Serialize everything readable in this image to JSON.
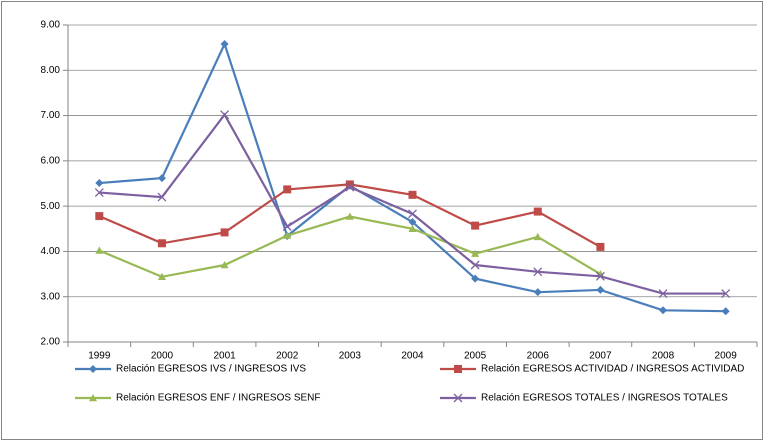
{
  "chart_data": {
    "type": "line",
    "categories": [
      "1999",
      "2000",
      "2001",
      "2002",
      "2003",
      "2004",
      "2005",
      "2006",
      "2007",
      "2008",
      "2009"
    ],
    "series": [
      {
        "name": "Relación EGRESOS IVS / INGRESOS IVS",
        "color": "#4a7ebb",
        "marker": "diamond",
        "values": [
          5.51,
          5.62,
          8.58,
          4.34,
          5.45,
          4.65,
          3.4,
          3.1,
          3.15,
          2.7,
          2.68
        ]
      },
      {
        "name": "Relación EGRESOS  ACTIVIDAD / INGRESOS ACTIVIDAD",
        "color": "#be4b48",
        "marker": "square",
        "values": [
          4.78,
          4.18,
          4.42,
          5.37,
          5.48,
          5.25,
          4.57,
          4.88,
          4.1,
          null,
          null
        ]
      },
      {
        "name": "Relación EGRESOS  ENF / INGRESOS  SENF",
        "color": "#98b954",
        "marker": "triangle",
        "values": [
          4.02,
          3.44,
          3.7,
          4.35,
          4.77,
          4.5,
          3.95,
          4.32,
          3.5,
          null,
          null
        ]
      },
      {
        "name": "Relación EGRESOS  TOTALES / INGRESOS TOTALES",
        "color": "#7d60a0",
        "marker": "x",
        "values": [
          5.3,
          5.2,
          7.02,
          4.55,
          5.42,
          4.83,
          3.7,
          3.55,
          3.45,
          3.07,
          3.07
        ]
      }
    ],
    "ylim": [
      2,
      9
    ],
    "yticks": [
      {
        "value": 2,
        "label": "2.00"
      },
      {
        "value": 3,
        "label": "3.00"
      },
      {
        "value": 4,
        "label": "4.00"
      },
      {
        "value": 5,
        "label": "5.00"
      },
      {
        "value": 6,
        "label": "6.00"
      },
      {
        "value": 7,
        "label": "7.00"
      },
      {
        "value": 8,
        "label": "8.00"
      },
      {
        "value": 9,
        "label": "9.00"
      }
    ],
    "grid": true,
    "legend": "bottom"
  }
}
